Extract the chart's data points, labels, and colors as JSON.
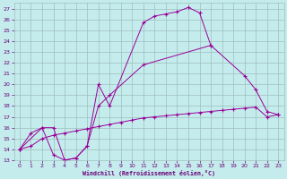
{
  "xlabel": "Windchill (Refroidissement éolien,°C)",
  "bg_color": "#c5ecec",
  "grid_color": "#9dbdbd",
  "line_color": "#990099",
  "xlim": [
    -0.5,
    23.5
  ],
  "ylim": [
    13,
    27.5
  ],
  "xticks": [
    0,
    1,
    2,
    3,
    4,
    5,
    6,
    7,
    8,
    9,
    10,
    11,
    12,
    13,
    14,
    15,
    16,
    17,
    18,
    19,
    20,
    21,
    22,
    23
  ],
  "yticks": [
    13,
    14,
    15,
    16,
    17,
    18,
    19,
    20,
    21,
    22,
    23,
    24,
    25,
    26,
    27
  ],
  "font_color": "#660077",
  "line1_x": [
    0,
    1,
    2,
    3,
    4,
    5,
    6,
    7,
    8,
    11,
    12,
    13,
    14,
    15,
    16,
    17
  ],
  "line1_y": [
    14.0,
    15.5,
    16.0,
    13.5,
    13.0,
    13.2,
    14.3,
    20.0,
    18.0,
    25.7,
    26.3,
    26.5,
    26.7,
    27.1,
    26.6,
    23.6
  ],
  "line2_x": [
    0,
    2,
    3,
    4,
    5,
    6,
    7,
    8,
    11,
    17,
    20,
    21,
    22,
    23
  ],
  "line2_y": [
    14.0,
    16.0,
    16.0,
    13.0,
    13.2,
    14.3,
    18.0,
    19.0,
    21.8,
    23.6,
    20.8,
    19.5,
    17.5,
    17.2
  ],
  "line3_x": [
    0,
    1,
    2,
    3,
    4,
    5,
    6,
    7,
    8,
    9,
    10,
    11,
    12,
    13,
    14,
    15,
    16,
    17,
    18,
    19,
    20,
    21,
    22,
    23
  ],
  "line3_y": [
    14.0,
    14.3,
    15.0,
    15.3,
    15.5,
    15.7,
    15.9,
    16.1,
    16.3,
    16.5,
    16.7,
    16.9,
    17.0,
    17.1,
    17.2,
    17.3,
    17.4,
    17.5,
    17.6,
    17.7,
    17.8,
    17.9,
    17.0,
    17.2
  ]
}
